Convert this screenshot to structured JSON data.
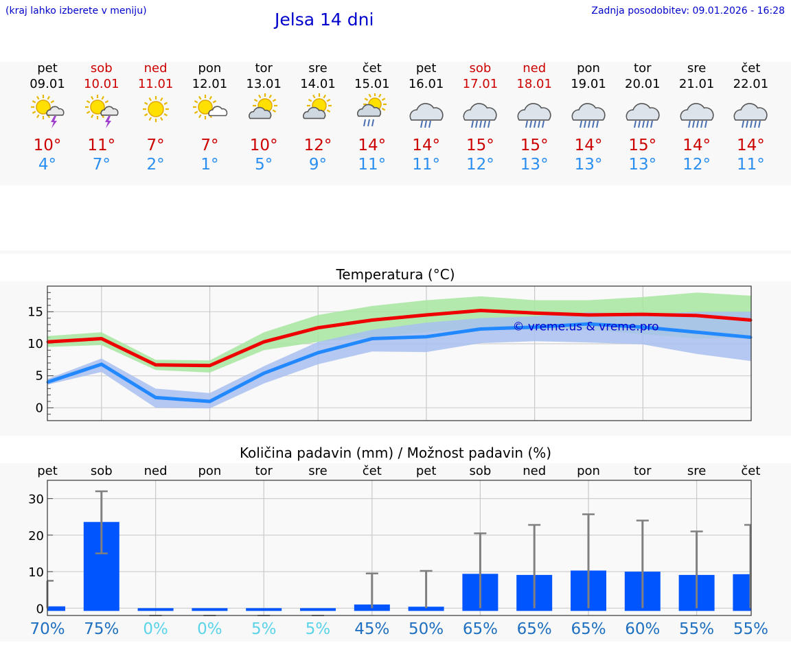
{
  "header": {
    "hint": "(kraj lahko izberete v meniju)",
    "title": "Jelsa 14 dni",
    "updated": "Zadnja posodobitev: 09.01.2026 - 16:28"
  },
  "days": [
    {
      "name": "pet",
      "date": "09.01",
      "weekend": false,
      "icon": "sun-thunderstorm-icon",
      "max": "10°",
      "min": "4°"
    },
    {
      "name": "sob",
      "date": "10.01",
      "weekend": true,
      "icon": "sun-thunderstorm-icon",
      "max": "11°",
      "min": "7°"
    },
    {
      "name": "ned",
      "date": "11.01",
      "weekend": true,
      "icon": "sun-icon",
      "max": "7°",
      "min": "2°"
    },
    {
      "name": "pon",
      "date": "12.01",
      "weekend": false,
      "icon": "sun-small-cloud-icon",
      "max": "7°",
      "min": "1°"
    },
    {
      "name": "tor",
      "date": "13.01",
      "weekend": false,
      "icon": "sun-cloud-icon",
      "max": "10°",
      "min": "5°"
    },
    {
      "name": "sre",
      "date": "14.01",
      "weekend": false,
      "icon": "sun-cloud-icon",
      "max": "12°",
      "min": "9°"
    },
    {
      "name": "čet",
      "date": "15.01",
      "weekend": false,
      "icon": "sun-cloud-rain-icon",
      "max": "14°",
      "min": "11°"
    },
    {
      "name": "pet",
      "date": "16.01",
      "weekend": false,
      "icon": "cloud-rain-icon",
      "max": "14°",
      "min": "11°"
    },
    {
      "name": "sob",
      "date": "17.01",
      "weekend": true,
      "icon": "cloud-heavy-rain-icon",
      "max": "15°",
      "min": "12°"
    },
    {
      "name": "ned",
      "date": "18.01",
      "weekend": true,
      "icon": "cloud-heavy-rain-icon",
      "max": "15°",
      "min": "13°"
    },
    {
      "name": "pon",
      "date": "19.01",
      "weekend": false,
      "icon": "cloud-heavy-rain-icon",
      "max": "14°",
      "min": "13°"
    },
    {
      "name": "tor",
      "date": "20.01",
      "weekend": false,
      "icon": "cloud-heavy-rain-icon",
      "max": "15°",
      "min": "13°"
    },
    {
      "name": "sre",
      "date": "21.01",
      "weekend": false,
      "icon": "cloud-heavy-rain-icon",
      "max": "14°",
      "min": "12°"
    },
    {
      "name": "čet",
      "date": "22.01",
      "weekend": false,
      "icon": "cloud-heavy-rain-icon",
      "max": "14°",
      "min": "11°"
    }
  ],
  "colors": {
    "max": "#ee0000",
    "min": "#2288ff",
    "maxBand": "#a8e6a0",
    "minBand": "#a8c0f0",
    "bar": "#0055ff",
    "err": "#808080",
    "pctDark": "#1e6fbf",
    "pctLight": "#5bd3e8"
  },
  "chart_data": [
    {
      "type": "line",
      "title": "Temperatura (°C)",
      "watermark": "© vreme.us & vreme.pro",
      "x": [
        0,
        1,
        2,
        3,
        4,
        5,
        6,
        7,
        8,
        9,
        10,
        11,
        12,
        13
      ],
      "ylim": [
        -2,
        19
      ],
      "yticks": [
        0,
        5,
        10,
        15
      ],
      "series": [
        {
          "name": "max",
          "values": [
            10.3,
            10.8,
            6.7,
            6.6,
            10.3,
            12.5,
            13.7,
            14.5,
            15.2,
            14.8,
            14.5,
            14.6,
            14.4,
            13.7
          ],
          "band_low": [
            9.5,
            9.8,
            5.9,
            5.5,
            9.0,
            10.3,
            11.0,
            11.8,
            12.5,
            12.2,
            12.2,
            11.5,
            10.8,
            11.0
          ],
          "band_high": [
            11.2,
            11.8,
            7.5,
            7.4,
            11.8,
            14.5,
            15.9,
            16.8,
            17.4,
            16.8,
            16.8,
            17.3,
            18.0,
            17.5
          ]
        },
        {
          "name": "min",
          "values": [
            4.0,
            6.8,
            1.6,
            1.0,
            5.4,
            8.6,
            10.8,
            11.1,
            12.3,
            12.6,
            13.1,
            12.6,
            11.8,
            11.0
          ],
          "band_low": [
            3.6,
            5.6,
            0.0,
            -0.1,
            3.8,
            6.8,
            8.8,
            8.7,
            10.1,
            10.4,
            10.2,
            9.9,
            8.4,
            7.3
          ],
          "band_high": [
            4.5,
            7.7,
            3.0,
            2.3,
            6.5,
            10.3,
            12.2,
            13.3,
            14.0,
            14.3,
            14.9,
            14.6,
            15.0,
            15.0
          ]
        }
      ]
    },
    {
      "type": "bar",
      "title": "Količina padavin (mm) / Možnost padavin (%)",
      "categories": [
        "pet",
        "sob",
        "ned",
        "pon",
        "tor",
        "sre",
        "čet",
        "pet",
        "sob",
        "ned",
        "pon",
        "tor",
        "sre",
        "čet"
      ],
      "ylim": [
        -2,
        35
      ],
      "yticks": [
        0,
        10,
        20,
        30
      ],
      "values": [
        0.5,
        23.6,
        0,
        0,
        0,
        0,
        1.0,
        0.4,
        9.4,
        9.1,
        10.3,
        10.0,
        9.1,
        9.3
      ],
      "err_low": [
        0,
        15,
        0,
        0,
        0,
        0,
        0,
        0,
        0,
        0,
        0,
        0,
        0,
        0
      ],
      "err_high": [
        7.5,
        32.0,
        0,
        0,
        0,
        0,
        9.5,
        10.2,
        20.5,
        22.8,
        25.7,
        24.0,
        21.0,
        22.8
      ],
      "chance": [
        "70%",
        "75%",
        "0%",
        "0%",
        "5%",
        "5%",
        "45%",
        "50%",
        "65%",
        "65%",
        "65%",
        "60%",
        "55%",
        "55%"
      ]
    }
  ]
}
